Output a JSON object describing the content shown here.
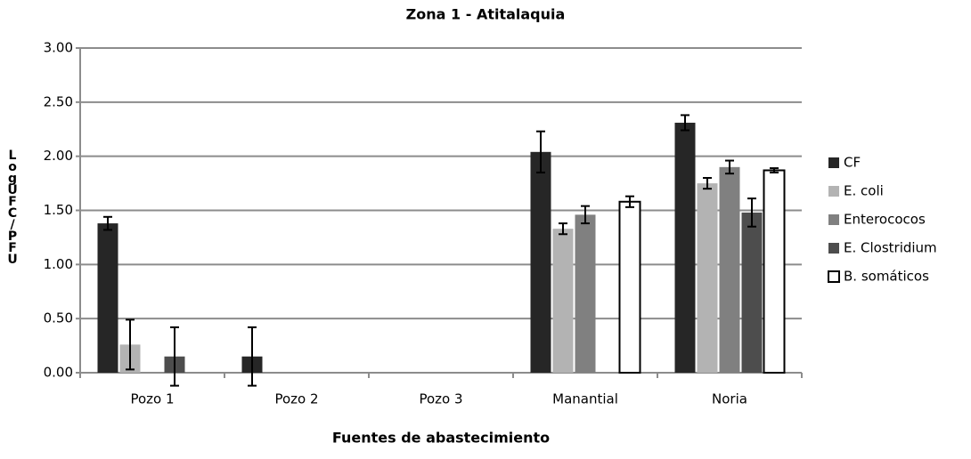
{
  "chart_data": {
    "type": "bar",
    "title": "Zona 1 - Atitalaquia",
    "x_label": "Fuentes de abastecimiento",
    "y_label": "Log UFC/PFU",
    "categories": [
      "Pozo 1",
      "Pozo 2",
      "Pozo 3",
      "Manantial",
      "Noria"
    ],
    "series": [
      {
        "name": "CF",
        "color": "#262626",
        "values": [
          1.38,
          0.15,
          0,
          2.04,
          2.31
        ],
        "errors": [
          0.06,
          0.27,
          null,
          0.19,
          0.07
        ]
      },
      {
        "name": "E. coli",
        "color": "#b3b3b3",
        "values": [
          0.26,
          0,
          0,
          1.33,
          1.75
        ],
        "errors": [
          0.23,
          null,
          null,
          0.05,
          0.05
        ]
      },
      {
        "name": "Enterococos",
        "color": "#808080",
        "values": [
          0,
          0,
          0,
          1.46,
          1.9
        ],
        "errors": [
          null,
          null,
          null,
          0.08,
          0.06
        ]
      },
      {
        "name": "E. Clostridium",
        "color": "#4d4d4d",
        "values": [
          0.15,
          0,
          0,
          0,
          1.48
        ],
        "errors": [
          0.27,
          null,
          null,
          null,
          0.13
        ]
      },
      {
        "name": "B. somáticos",
        "color": "#ffffff",
        "values": [
          0,
          0,
          0,
          1.58,
          1.87
        ],
        "errors": [
          null,
          null,
          null,
          0.05,
          0.02
        ]
      }
    ],
    "ylim": [
      0,
      3
    ],
    "yticks": [
      {
        "value": 0,
        "label": "0.00"
      },
      {
        "value": 0.5,
        "label": "0.50"
      },
      {
        "value": 1,
        "label": "1.00"
      },
      {
        "value": 1.5,
        "label": "1.50"
      },
      {
        "value": 2,
        "label": "2.00"
      },
      {
        "value": 2.5,
        "label": "2.50"
      },
      {
        "value": 3,
        "label": "3.00"
      }
    ],
    "grid": true,
    "legend": "right"
  }
}
